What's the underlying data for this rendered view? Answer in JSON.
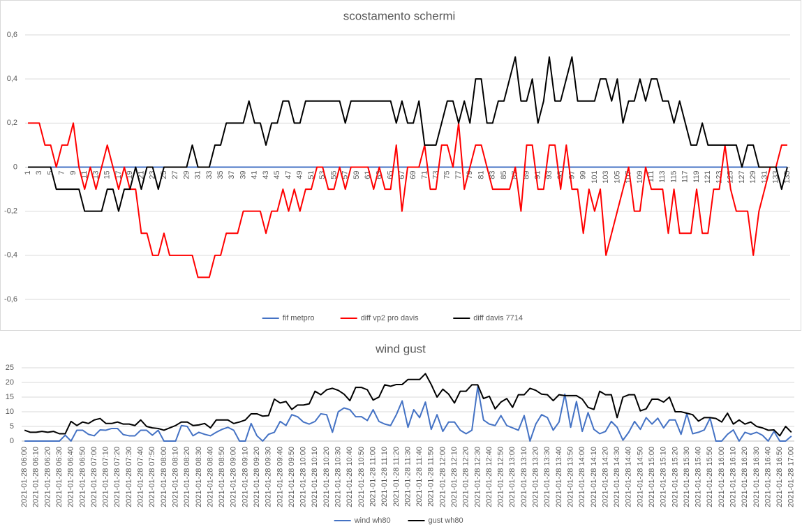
{
  "chart_data": [
    {
      "type": "line",
      "title": "scostamento schermi",
      "categories": [
        1,
        null,
        3,
        null,
        5,
        null,
        7,
        null,
        9,
        null,
        11,
        null,
        13,
        null,
        15,
        null,
        17,
        null,
        19,
        null,
        21,
        null,
        23,
        null,
        25,
        null,
        27,
        null,
        29,
        null,
        31,
        null,
        33,
        null,
        35,
        null,
        37,
        null,
        39,
        null,
        41,
        null,
        43,
        null,
        45,
        null,
        47,
        null,
        49,
        null,
        51,
        null,
        53,
        null,
        55,
        null,
        57,
        null,
        59,
        null,
        61,
        null,
        63,
        null,
        65,
        null,
        67,
        null,
        69,
        null,
        71,
        null,
        73,
        null,
        75,
        null,
        77,
        null,
        79,
        null,
        81,
        null,
        83,
        null,
        85,
        null,
        87,
        null,
        89,
        null,
        91,
        null,
        93,
        null,
        95,
        null,
        97,
        null,
        99,
        null,
        101,
        null,
        103,
        null,
        105,
        null,
        107,
        null,
        109,
        null,
        111,
        null,
        113,
        null,
        115,
        null,
        117,
        null,
        119,
        null,
        121,
        null,
        123,
        null,
        125,
        null,
        127,
        null,
        129,
        null,
        131,
        null,
        133,
        null,
        135
      ],
      "series": [
        {
          "name": "fif metpro",
          "color": "#4472c4",
          "values": [
            0,
            0,
            0,
            0,
            0,
            0,
            0,
            0,
            0,
            0,
            0,
            0,
            0,
            0,
            0,
            0,
            0,
            0,
            0,
            0,
            0,
            0,
            0,
            0,
            0,
            0,
            0,
            0,
            0,
            0,
            0,
            0,
            0,
            0,
            0,
            0,
            0,
            0,
            0,
            0,
            0,
            0,
            0,
            0,
            0,
            0,
            0,
            0,
            0,
            0,
            0,
            0,
            0,
            0,
            0,
            0,
            0,
            0,
            0,
            0,
            0,
            0,
            0,
            0,
            0,
            0,
            0,
            0,
            0,
            0,
            0,
            0,
            0,
            0,
            0,
            0,
            0,
            0,
            0,
            0,
            0,
            0,
            0,
            0,
            0,
            0,
            0,
            0,
            0,
            0,
            0,
            0,
            0,
            0,
            0,
            0,
            0,
            0,
            0,
            0,
            0,
            0,
            0,
            0,
            0,
            0,
            0,
            0,
            0,
            0,
            0,
            0,
            0,
            0,
            0,
            0,
            0,
            0,
            0,
            0,
            0,
            0,
            0,
            0,
            0,
            0,
            0,
            0,
            0,
            0,
            0,
            0,
            0,
            0,
            0
          ]
        },
        {
          "name": "diff vp2 pro davis",
          "color": "#ff0000",
          "values": [
            0.2,
            0.2,
            0.2,
            0.1,
            0.1,
            0,
            0.1,
            0.1,
            0.2,
            0,
            -0.1,
            0,
            -0.1,
            0,
            0.1,
            0,
            -0.1,
            0,
            -0.1,
            -0.1,
            -0.3,
            -0.3,
            -0.4,
            -0.4,
            -0.3,
            -0.4,
            -0.4,
            -0.4,
            -0.4,
            -0.4,
            -0.5,
            -0.5,
            -0.5,
            -0.4,
            -0.4,
            -0.3,
            -0.3,
            -0.3,
            -0.2,
            -0.2,
            -0.2,
            -0.2,
            -0.3,
            -0.2,
            -0.2,
            -0.1,
            -0.2,
            -0.1,
            -0.2,
            -0.1,
            -0.1,
            0,
            0,
            -0.1,
            -0.1,
            0,
            -0.1,
            0,
            0,
            0,
            0,
            -0.1,
            0,
            -0.1,
            -0.1,
            0.1,
            -0.2,
            0,
            0,
            0,
            0.1,
            -0.1,
            -0.1,
            0.1,
            0.1,
            0,
            0.2,
            -0.1,
            0,
            0.1,
            0.1,
            0,
            -0.1,
            -0.1,
            -0.1,
            -0.1,
            0,
            -0.2,
            0.1,
            0.1,
            -0.1,
            -0.1,
            0.1,
            0.1,
            -0.1,
            0.1,
            -0.1,
            -0.1,
            -0.3,
            -0.1,
            -0.2,
            -0.1,
            -0.4,
            -0.3,
            -0.2,
            -0.1,
            0,
            -0.2,
            -0.2,
            0,
            -0.1,
            -0.1,
            -0.1,
            -0.3,
            -0.1,
            -0.3,
            -0.3,
            -0.3,
            -0.1,
            -0.3,
            -0.3,
            -0.1,
            -0.1,
            0.1,
            -0.1,
            -0.2,
            -0.2,
            -0.2,
            -0.4,
            -0.2,
            -0.1,
            0,
            0,
            0.1,
            0.1
          ]
        },
        {
          "name": "diff davis 7714",
          "color": "#000000",
          "values": [
            0,
            0,
            0,
            0,
            0,
            -0.1,
            -0.1,
            -0.1,
            -0.1,
            -0.1,
            -0.2,
            -0.2,
            -0.2,
            -0.2,
            -0.1,
            -0.1,
            -0.2,
            -0.1,
            -0.1,
            0,
            -0.1,
            0,
            0,
            -0.1,
            0,
            0,
            0,
            0,
            0,
            0.1,
            0,
            0,
            0,
            0.1,
            0.1,
            0.2,
            0.2,
            0.2,
            0.2,
            0.3,
            0.2,
            0.2,
            0.1,
            0.2,
            0.2,
            0.3,
            0.3,
            0.2,
            0.2,
            0.3,
            0.3,
            0.3,
            0.3,
            0.3,
            0.3,
            0.3,
            0.2,
            0.3,
            0.3,
            0.3,
            0.3,
            0.3,
            0.3,
            0.3,
            0.3,
            0.2,
            0.3,
            0.2,
            0.2,
            0.3,
            0.1,
            0.1,
            0.1,
            0.2,
            0.3,
            0.3,
            0.2,
            0.3,
            0.2,
            0.4,
            0.4,
            0.2,
            0.2,
            0.3,
            0.3,
            0.4,
            0.5,
            0.3,
            0.3,
            0.4,
            0.2,
            0.3,
            0.5,
            0.3,
            0.3,
            0.4,
            0.5,
            0.3,
            0.3,
            0.3,
            0.3,
            0.4,
            0.4,
            0.3,
            0.4,
            0.2,
            0.3,
            0.3,
            0.4,
            0.3,
            0.4,
            0.4,
            0.3,
            0.3,
            0.2,
            0.3,
            0.2,
            0.1,
            0.1,
            0.2,
            0.1,
            0.1,
            0.1,
            0.1,
            0.1,
            0.1,
            0,
            0.1,
            0.1,
            0,
            0,
            0,
            0,
            -0.1,
            0
          ]
        }
      ],
      "ylim": [
        -0.6,
        0.6
      ],
      "yticks": [
        {
          "value": -0.6,
          "label": "-0,6"
        },
        {
          "value": -0.4,
          "label": "-0,4"
        },
        {
          "value": -0.2,
          "label": "-0,2"
        },
        0,
        {
          "value": 0.2,
          "label": "0,2"
        },
        {
          "value": 0.4,
          "label": "0,4"
        },
        {
          "value": 0.6,
          "label": "0,6"
        }
      ],
      "grid": true,
      "legend": "bottom"
    },
    {
      "type": "line",
      "title": "wind gust",
      "categories": [
        "2021-01-28 06:00",
        null,
        "2021-01-28 06:10",
        null,
        "2021-01-28 06:20",
        null,
        "2021-01-28 06:30",
        null,
        "2021-01-28 06:40",
        null,
        "2021-01-28 06:50",
        null,
        "2021-01-28 07:00",
        null,
        "2021-01-28 07:10",
        null,
        "2021-01-28 07:20",
        null,
        "2021-01-28 07:30",
        null,
        "2021-01-28 07:40",
        null,
        "2021-01-28 07:50",
        null,
        "2021-01-28 08:00",
        null,
        "2021-01-28 08:10",
        null,
        "2021-01-28 08:20",
        null,
        "2021-01-28 08:30",
        null,
        "2021-01-28 08:40",
        null,
        "2021-01-28 08:50",
        null,
        "2021-01-28 09:00",
        null,
        "2021-01-28 09:10",
        null,
        "2021-01-28 09:20",
        null,
        "2021-01-28 09:30",
        null,
        "2021-01-28 09:40",
        null,
        "2021-01-28 09:50",
        null,
        "2021-01-28 10:00",
        null,
        "2021-01-28 10:10",
        null,
        "2021-01-28 10:20",
        null,
        "2021-01-28 10:30",
        null,
        "2021-01-28 10:40",
        null,
        "2021-01-28 10:50",
        null,
        "2021-01-28 11:00",
        null,
        "2021-01-28 11:10",
        null,
        "2021-01-28 11:20",
        null,
        "2021-01-28 11:30",
        null,
        "2021-01-28 11:40",
        null,
        "2021-01-28 11:50",
        null,
        "2021-01-28 12:00",
        null,
        "2021-01-28 12:10",
        null,
        "2021-01-28 12:20",
        null,
        "2021-01-28 12:30",
        null,
        "2021-01-28 12:40",
        null,
        "2021-01-28 12:50",
        null,
        "2021-01-28 13:00",
        null,
        "2021-01-28 13:10",
        null,
        "2021-01-28 13:20",
        null,
        "2021-01-28 13:30",
        null,
        "2021-01-28 13:40",
        null,
        "2021-01-28 13:50",
        null,
        "2021-01-28 14:00",
        null,
        "2021-01-28 14:10",
        null,
        "2021-01-28 14:20",
        null,
        "2021-01-28 14:30",
        null,
        "2021-01-28 14:40",
        null,
        "2021-01-28 14:50",
        null,
        "2021-01-28 15:00",
        null,
        "2021-01-28 15:10",
        null,
        "2021-01-28 15:20",
        null,
        "2021-01-28 15:30",
        null,
        "2021-01-28 15:40",
        null,
        "2021-01-28 15:50",
        null,
        "2021-01-28 16:00",
        null,
        "2021-01-28 16:10",
        null,
        "2021-01-28 16:20",
        null,
        "2021-01-28 16:30",
        null,
        "2021-01-28 16:40",
        null,
        "2021-01-28 16:50",
        null,
        "2021-01-28 17:00"
      ],
      "series": [
        {
          "name": "wind wh80",
          "color": "#4472c4",
          "values": [
            0,
            0,
            0,
            0,
            0,
            0,
            0,
            2,
            0,
            3.7,
            3.7,
            2.3,
            1.8,
            3.8,
            3.7,
            4.3,
            4.3,
            2.2,
            1.8,
            1.8,
            3.7,
            3.7,
            2,
            3.7,
            0,
            0,
            0,
            5.3,
            5,
            1.8,
            3,
            2.3,
            1.8,
            3,
            4,
            4.7,
            3.7,
            0,
            0,
            6,
            1.8,
            0,
            2.3,
            3,
            6.7,
            5.3,
            9,
            8.3,
            6.5,
            5.8,
            6.7,
            9.3,
            9,
            3,
            10,
            11.3,
            10.7,
            8.3,
            8.3,
            7,
            10.7,
            6.7,
            5.8,
            5.3,
            9,
            13.7,
            4.7,
            10.7,
            8,
            13.3,
            4,
            9,
            3.3,
            6.5,
            6.5,
            3.7,
            2.5,
            3.7,
            18.5,
            7.2,
            5.8,
            5.3,
            8.7,
            5.3,
            4.5,
            3.7,
            8.7,
            0,
            5.8,
            9,
            8,
            3.7,
            6.5,
            16,
            4.7,
            13.5,
            3.3,
            9.7,
            4,
            2.5,
            3.3,
            6.7,
            4.7,
            0.3,
            3,
            6.7,
            4,
            8,
            5.8,
            7.8,
            4.5,
            7.2,
            7.2,
            2.3,
            9.3,
            2.5,
            3,
            3.8,
            7.8,
            0,
            0,
            2.3,
            3.8,
            0,
            3,
            2.3,
            3,
            2,
            0,
            3.3,
            0,
            0,
            1.7
          ]
        },
        {
          "name": "gust wh80",
          "color": "#000000",
          "values": [
            3.7,
            3,
            3,
            3.3,
            3,
            3.3,
            2.5,
            2.5,
            6.7,
            5.3,
            6.5,
            6,
            7.2,
            7.7,
            6,
            6,
            6.5,
            5.8,
            5.8,
            5.3,
            7.2,
            5,
            4.5,
            4.3,
            3.7,
            4.5,
            5.3,
            6.5,
            6.5,
            5.3,
            5.5,
            6,
            4.5,
            7.2,
            7.2,
            7.2,
            6,
            6.5,
            7.2,
            9.3,
            9.3,
            8.5,
            8.7,
            14.3,
            13,
            13.5,
            10.8,
            12.3,
            12.3,
            12.7,
            17,
            15.8,
            17.5,
            18,
            17.3,
            16,
            13.8,
            18.3,
            18.3,
            17.5,
            14,
            15,
            19.2,
            18.7,
            19.3,
            19.3,
            21,
            21,
            21,
            23,
            19.3,
            15,
            17.7,
            16,
            13,
            17,
            17,
            19.2,
            19.2,
            14.5,
            15.3,
            11,
            13.3,
            14.5,
            11.5,
            15.8,
            15.8,
            18,
            17.3,
            16,
            15.8,
            13.8,
            15.8,
            15.5,
            15.5,
            15.5,
            14.3,
            11.5,
            10.8,
            17,
            15.8,
            15.8,
            8,
            15,
            15.8,
            15.8,
            10.3,
            11,
            14.3,
            14.3,
            13.3,
            15,
            10,
            10,
            9.5,
            9,
            6.8,
            8,
            8,
            7.7,
            6.5,
            9.5,
            5.8,
            7.2,
            5.8,
            6.5,
            5,
            4.5,
            3.7,
            3.8,
            1.8,
            5,
            3
          ]
        }
      ],
      "ylim": [
        0,
        25
      ],
      "yticks": [
        0,
        5,
        10,
        15,
        20,
        25
      ],
      "grid": true,
      "legend": "bottom"
    }
  ]
}
